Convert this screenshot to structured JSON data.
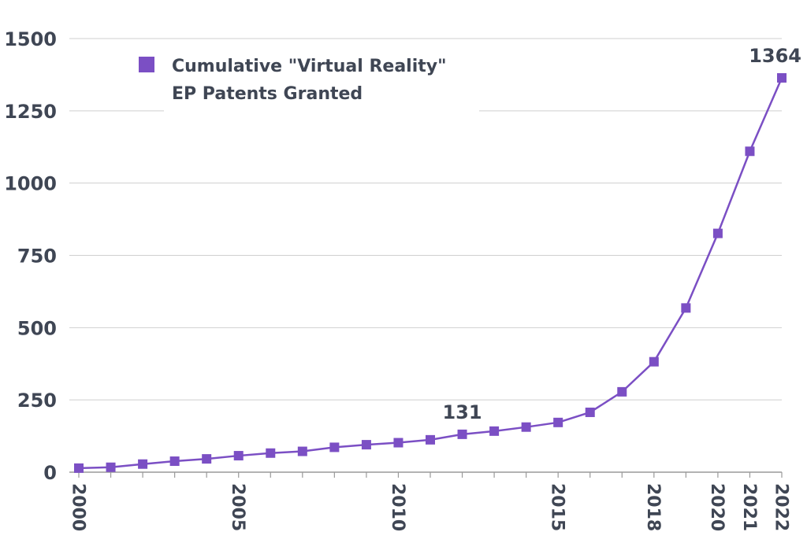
{
  "chart_data": {
    "type": "line",
    "title": "",
    "xlabel": "",
    "ylabel": "",
    "x": [
      2000,
      2001,
      2002,
      2003,
      2004,
      2005,
      2006,
      2007,
      2008,
      2009,
      2010,
      2011,
      2012,
      2013,
      2014,
      2015,
      2016,
      2017,
      2018,
      2019,
      2020,
      2021,
      2022
    ],
    "x_tick_labels": [
      "2000",
      "2005",
      "2010",
      "2015",
      "2018",
      "2020",
      "2021",
      "2022"
    ],
    "x_tick_label_values": [
      2000,
      2005,
      2010,
      2015,
      2018,
      2020,
      2021,
      2022
    ],
    "xlim": [
      2000,
      2022
    ],
    "ylim": [
      0,
      1500
    ],
    "y_ticks": [
      0,
      250,
      500,
      750,
      1000,
      1250,
      1500
    ],
    "grid": "horizontal",
    "legend_placement": "top-left",
    "series": [
      {
        "name": "Cumulative \"Virtual Reality\" EP Patents Granted",
        "name_lines": [
          "Cumulative \"Virtual Reality\"",
          "EP Patents Granted"
        ],
        "color": "#7b4fc4",
        "values": [
          14,
          17,
          28,
          38,
          46,
          57,
          66,
          72,
          86,
          95,
          102,
          112,
          131,
          142,
          156,
          172,
          207,
          278,
          382,
          568,
          826,
          1110,
          1364
        ]
      }
    ],
    "annotations": [
      {
        "x": 2012,
        "value": 131,
        "text": "131"
      },
      {
        "x": 2022,
        "value": 1364,
        "text": "1364"
      }
    ]
  }
}
